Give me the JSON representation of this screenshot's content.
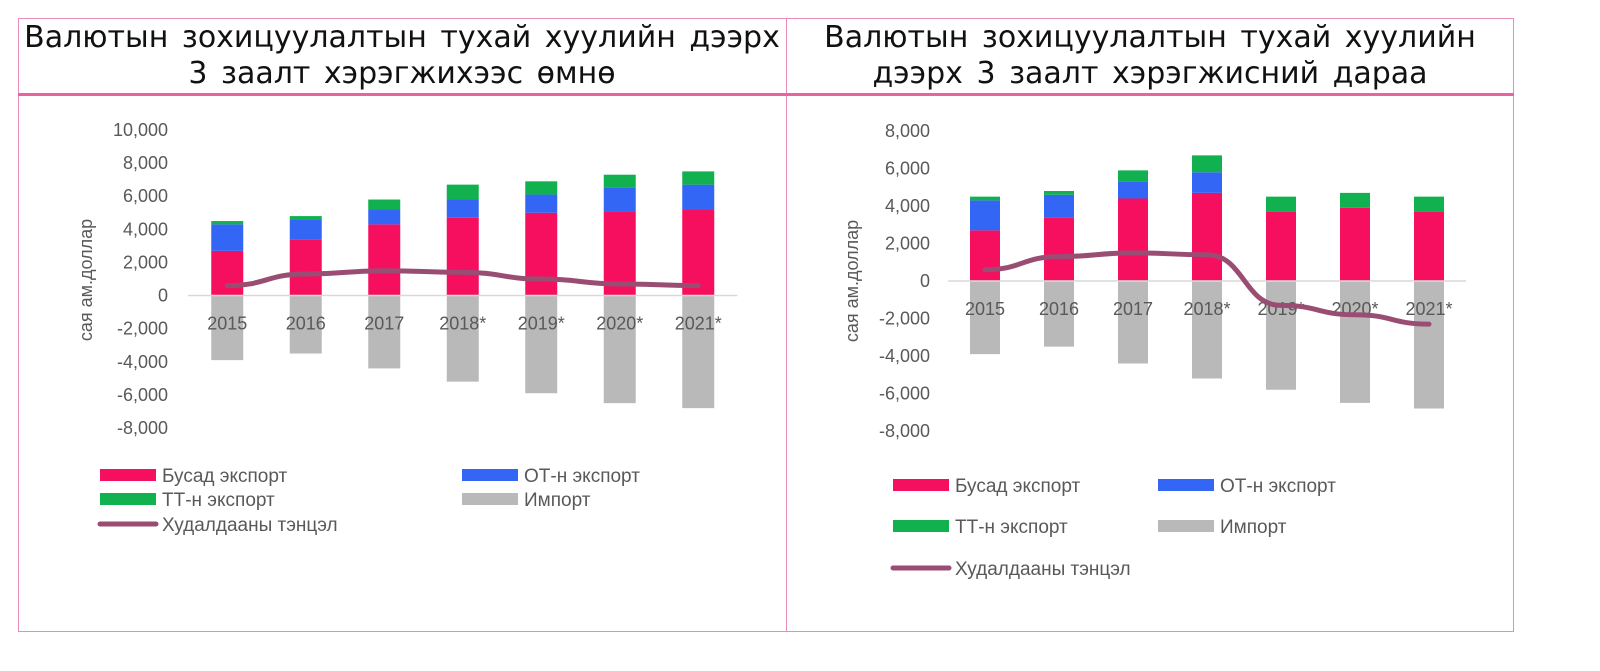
{
  "titles": {
    "left": "Валютын зохицуулалтын тухай хуулийн дээрх\n3 заалт хэрэгжихээс өмнө",
    "right": "Валютын зохицуулалтын тухай хуулийн\nдээрх 3 заалт хэрэгжисний дараа"
  },
  "colors": {
    "other_export": "#f50f5e",
    "ot_export": "#3366f5",
    "tt_export": "#12b14f",
    "import": "#b9b9b9",
    "balance": "#9a4d72",
    "frame": "#e98cbc",
    "axis_text": "#595959"
  },
  "chart_data": [
    {
      "type": "bar",
      "title": "Валютын зохицуулалтын тухай хуулийн дээрх 3 заалт хэрэгжихээс өмнө",
      "ylabel": "сая ам.доллар",
      "xlabel": "",
      "ylim": [
        -8000,
        10000
      ],
      "yticks": [
        -8000,
        -6000,
        -4000,
        -2000,
        0,
        2000,
        4000,
        6000,
        8000,
        10000
      ],
      "ytick_labels": [
        "-8,000",
        "-6,000",
        "-4,000",
        "-2,000",
        "0",
        "2,000",
        "4,000",
        "6,000",
        "8,000",
        "10,000"
      ],
      "categories": [
        "2015",
        "2016",
        "2017",
        "2018*",
        "2019*",
        "2020*",
        "2021*"
      ],
      "stacked": true,
      "legend_layout": "bottom, two columns",
      "series": [
        {
          "name": "Бусад экспорт",
          "kind": "bar",
          "color": "#f50f5e",
          "values": [
            2700,
            3400,
            4300,
            4700,
            5000,
            5100,
            5200
          ]
        },
        {
          "name": "ОТ-н экспорт",
          "kind": "bar",
          "color": "#3366f5",
          "values": [
            1600,
            1200,
            900,
            1100,
            1100,
            1400,
            1500
          ]
        },
        {
          "name": "ТТ-н экспорт",
          "kind": "bar",
          "color": "#12b14f",
          "values": [
            200,
            200,
            600,
            900,
            800,
            800,
            800
          ]
        },
        {
          "name": "Импорт",
          "kind": "bar",
          "color": "#b9b9b9",
          "values": [
            -3900,
            -3500,
            -4400,
            -5200,
            -5900,
            -6500,
            -6800
          ]
        },
        {
          "name": "Худалдааны тэнцэл",
          "kind": "line",
          "color": "#9a4d72",
          "values": [
            600,
            1300,
            1500,
            1400,
            1000,
            700,
            600
          ]
        }
      ]
    },
    {
      "type": "bar",
      "title": "Валютын зохицуулалтын тухай хуулийн дээрх 3 заалт хэрэгжисний дараа",
      "ylabel": "сая ам.доллар",
      "xlabel": "",
      "ylim": [
        -8000,
        8000
      ],
      "yticks": [
        -8000,
        -6000,
        -4000,
        -2000,
        0,
        2000,
        4000,
        6000,
        8000
      ],
      "ytick_labels": [
        "-8,000",
        "-6,000",
        "-4,000",
        "-2,000",
        "0",
        "2,000",
        "4,000",
        "6,000",
        "8,000"
      ],
      "categories": [
        "2015",
        "2016",
        "2017",
        "2018*",
        "2019*",
        "2020*",
        "2021*"
      ],
      "stacked": true,
      "legend_layout": "bottom, two columns",
      "series": [
        {
          "name": "Бусад экспорт",
          "kind": "bar",
          "color": "#f50f5e",
          "values": [
            2700,
            3400,
            4400,
            4700,
            3700,
            3900,
            3700
          ]
        },
        {
          "name": "ОТ-н экспорт",
          "kind": "bar",
          "color": "#3366f5",
          "values": [
            1600,
            1200,
            900,
            1100,
            0,
            0,
            0
          ]
        },
        {
          "name": "ТТ-н экспорт",
          "kind": "bar",
          "color": "#12b14f",
          "values": [
            200,
            200,
            600,
            900,
            800,
            800,
            800
          ]
        },
        {
          "name": "Импорт",
          "kind": "bar",
          "color": "#b9b9b9",
          "values": [
            -3900,
            -3500,
            -4400,
            -5200,
            -5800,
            -6500,
            -6800
          ]
        },
        {
          "name": "Худалдааны тэнцэл",
          "kind": "line",
          "color": "#9a4d72",
          "values": [
            600,
            1300,
            1500,
            1400,
            -1300,
            -1800,
            -2300
          ]
        }
      ]
    }
  ]
}
